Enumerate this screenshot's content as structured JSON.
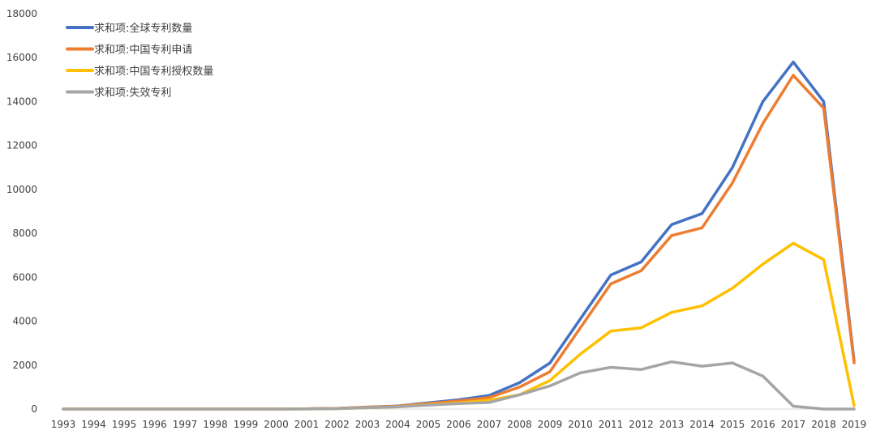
{
  "chart_data": {
    "type": "line",
    "title": "",
    "xlabel": "",
    "ylabel": "",
    "x": [
      "1993",
      "1994",
      "1995",
      "1996",
      "1997",
      "1998",
      "1999",
      "2000",
      "2001",
      "2002",
      "2003",
      "2004",
      "2005",
      "2006",
      "2007",
      "2008",
      "2009",
      "2010",
      "2011",
      "2012",
      "2013",
      "2014",
      "2015",
      "2016",
      "2017",
      "2018",
      "2019"
    ],
    "ylim": [
      0,
      18000
    ],
    "yticks": [
      0,
      2000,
      4000,
      6000,
      8000,
      10000,
      12000,
      14000,
      16000,
      18000
    ],
    "ytick_labels": [
      "0",
      "2000",
      "4000",
      "6000",
      "8000",
      "10000",
      "12000",
      "14000",
      "16000",
      "18000"
    ],
    "grid": false,
    "legend_position": "top-left",
    "series": [
      {
        "name": "求和项:全球专利数量",
        "color": "#4472C4",
        "values": [
          5,
          5,
          5,
          5,
          5,
          5,
          5,
          5,
          10,
          30,
          90,
          140,
          280,
          420,
          620,
          1200,
          2100,
          4100,
          6100,
          6700,
          8400,
          8900,
          11000,
          14000,
          15800,
          14000,
          2200
        ]
      },
      {
        "name": "求和项:中国专利申请",
        "color": "#ED7D31",
        "values": [
          5,
          5,
          5,
          5,
          5,
          5,
          5,
          5,
          10,
          30,
          80,
          130,
          250,
          370,
          520,
          1000,
          1700,
          3700,
          5700,
          6300,
          7900,
          8250,
          10300,
          13000,
          15200,
          13700,
          2100
        ]
      },
      {
        "name": "求和项:中国专利授权数量",
        "color": "#FFC000",
        "values": [
          0,
          0,
          0,
          0,
          0,
          0,
          0,
          0,
          5,
          20,
          60,
          100,
          200,
          280,
          400,
          650,
          1300,
          2500,
          3550,
          3700,
          4400,
          4700,
          5500,
          6600,
          7550,
          6800,
          150
        ]
      },
      {
        "name": "求和项:失效专利",
        "color": "#A5A5A5",
        "values": [
          0,
          0,
          0,
          0,
          0,
          0,
          0,
          0,
          5,
          20,
          60,
          100,
          180,
          250,
          300,
          650,
          1050,
          1650,
          1900,
          1800,
          2150,
          1950,
          2100,
          1500,
          130,
          0,
          0
        ]
      }
    ]
  }
}
